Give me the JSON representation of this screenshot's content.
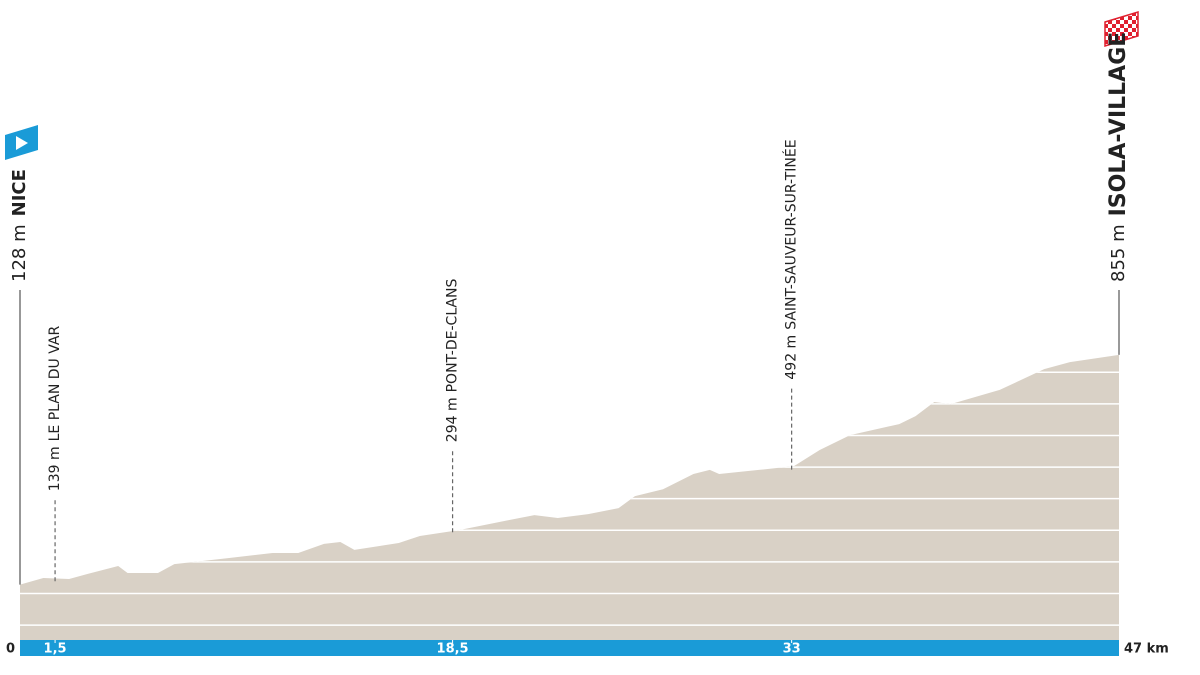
{
  "chart_data": {
    "type": "area",
    "x": [
      0,
      1.0,
      2.1,
      2.9,
      4.2,
      4.6,
      5.9,
      6.6,
      8.9,
      10.8,
      11.9,
      13.0,
      13.7,
      14.3,
      16.2,
      17.1,
      18.8,
      20.9,
      22.0,
      23.0,
      24.3,
      25.6,
      26.3,
      27.5,
      28.8,
      29.5,
      29.9,
      31.6,
      33.1,
      34.2,
      35.5,
      37.6,
      38.3,
      39.1,
      39.8,
      41.9,
      43.8,
      44.9,
      47
    ],
    "values": [
      128,
      149,
      146,
      162,
      187,
      165,
      165,
      193,
      212,
      228,
      228,
      257,
      263,
      238,
      260,
      282,
      301,
      332,
      348,
      339,
      351,
      370,
      408,
      430,
      478,
      491,
      478,
      491,
      503,
      554,
      601,
      636,
      661,
      706,
      699,
      744,
      810,
      832,
      855
    ],
    "color": "#d9d1c6",
    "xlim": [
      0,
      47
    ],
    "ylim": [
      -47,
      1000
    ],
    "xticks": [
      0,
      {
        "value": 1.5,
        "label": "1,5"
      },
      {
        "value": 18.5,
        "label": "18,5"
      },
      33,
      {
        "value": 47,
        "label": "47 km"
      }
    ],
    "yticks": [
      0,
      100,
      200,
      300,
      400,
      500,
      600,
      700,
      800
    ],
    "grid": true,
    "start": {
      "name": "NICE",
      "elevation": 128,
      "elevation_label": "128 m",
      "km": 0
    },
    "finish": {
      "name": "ISOLA-VILLAGE",
      "elevation": 855,
      "elevation_label": "855 m",
      "km": 47
    },
    "waypoints": [
      {
        "name": "LE PLAN DU VAR",
        "elevation": 139,
        "elevation_label": "139 m",
        "km": 1.5
      },
      {
        "name": "PONT-DE-CLANS",
        "elevation": 294,
        "elevation_label": "294 m",
        "km": 18.5
      },
      {
        "name": "SAINT-SAUVEUR-SUR-TINÉE",
        "elevation": 492,
        "elevation_label": "492 m",
        "km": 33
      }
    ]
  }
}
